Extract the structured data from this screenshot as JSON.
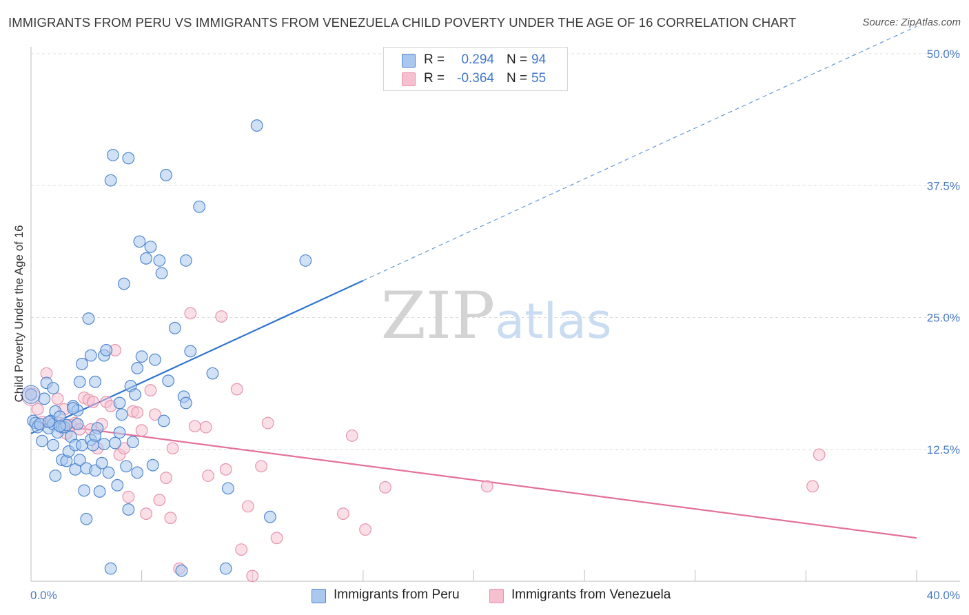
{
  "title": "IMMIGRANTS FROM PERU VS IMMIGRANTS FROM VENEZUELA CHILD POVERTY UNDER THE AGE OF 16 CORRELATION CHART",
  "source": "Source: ZipAtlas.com",
  "watermark": "ZIPatlas",
  "colors": {
    "peru_fill": "#aac8ee",
    "peru_stroke": "#4f86cf",
    "peru_line": "#2e74d1",
    "ven_fill": "#f7c0d0",
    "ven_stroke": "#e593ad",
    "ven_line": "#e4709a",
    "axis_text": "#4a7cc7",
    "grid": "#dcdcdc"
  },
  "legend_top": {
    "rows": [
      {
        "series": "peru",
        "r_label": "R =",
        "r_value": "0.294",
        "n_label": "N =",
        "n_value": "94"
      },
      {
        "series": "venezuela",
        "r_label": "R =",
        "r_value": "-0.364",
        "n_label": "N =",
        "n_value": "55"
      }
    ]
  },
  "legend_bottom": [
    {
      "series": "peru",
      "label": "Immigrants from Peru"
    },
    {
      "series": "venezuela",
      "label": "Immigrants from Venezuela"
    }
  ],
  "chart_data": {
    "type": "scatter",
    "title": "IMMIGRANTS FROM PERU VS IMMIGRANTS FROM VENEZUELA CHILD POVERTY UNDER THE AGE OF 16 CORRELATION CHART",
    "xlabel": "",
    "ylabel": "Child Poverty Under the Age of 16",
    "xlim": [
      0,
      40
    ],
    "ylim": [
      0,
      50
    ],
    "x_tick_labels": [
      "0.0%",
      "40.0%"
    ],
    "y_ticks": [
      12.5,
      25.0,
      37.5,
      50.0
    ],
    "y_tick_labels": [
      "12.5%",
      "25.0%",
      "37.5%",
      "50.0%"
    ],
    "grid": true,
    "series": [
      {
        "name": "Immigrants from Peru",
        "key": "peru",
        "trend": {
          "x0": 0,
          "y0": 14.0,
          "x1": 15.0,
          "y1": 28.5,
          "dash_to_x": 40,
          "dash_to_y": 52.6
        },
        "points": [
          [
            0.0,
            17.7
          ],
          [
            0.1,
            15.2
          ],
          [
            0.2,
            15.0
          ],
          [
            0.3,
            14.6
          ],
          [
            0.4,
            14.9
          ],
          [
            0.5,
            13.3
          ],
          [
            0.6,
            17.3
          ],
          [
            0.7,
            18.8
          ],
          [
            0.8,
            14.5
          ],
          [
            0.9,
            15.2
          ],
          [
            1.0,
            12.9
          ],
          [
            1.0,
            18.3
          ],
          [
            1.1,
            16.1
          ],
          [
            1.0,
            14.9
          ],
          [
            1.1,
            10.0
          ],
          [
            1.2,
            14.1
          ],
          [
            1.3,
            15.6
          ],
          [
            1.4,
            11.5
          ],
          [
            1.4,
            14.6
          ],
          [
            1.5,
            14.6
          ],
          [
            1.6,
            11.4
          ],
          [
            1.6,
            14.8
          ],
          [
            1.7,
            12.3
          ],
          [
            1.8,
            13.7
          ],
          [
            1.9,
            16.6
          ],
          [
            2.0,
            10.6
          ],
          [
            2.0,
            12.9
          ],
          [
            2.1,
            16.2
          ],
          [
            2.2,
            18.9
          ],
          [
            2.2,
            11.5
          ],
          [
            2.3,
            12.9
          ],
          [
            2.3,
            20.6
          ],
          [
            2.4,
            8.6
          ],
          [
            2.5,
            10.7
          ],
          [
            2.5,
            5.9
          ],
          [
            2.6,
            24.9
          ],
          [
            2.7,
            13.4
          ],
          [
            2.7,
            21.4
          ],
          [
            2.8,
            12.9
          ],
          [
            2.9,
            10.5
          ],
          [
            2.9,
            18.9
          ],
          [
            3.0,
            14.5
          ],
          [
            3.1,
            8.5
          ],
          [
            3.2,
            11.2
          ],
          [
            3.3,
            21.4
          ],
          [
            3.3,
            13.0
          ],
          [
            3.4,
            21.9
          ],
          [
            3.5,
            10.3
          ],
          [
            3.6,
            1.2
          ],
          [
            3.7,
            40.4
          ],
          [
            3.8,
            13.1
          ],
          [
            3.9,
            9.1
          ],
          [
            4.0,
            16.9
          ],
          [
            4.0,
            14.1
          ],
          [
            4.1,
            15.8
          ],
          [
            4.2,
            28.2
          ],
          [
            4.3,
            10.9
          ],
          [
            4.4,
            40.1
          ],
          [
            4.4,
            6.8
          ],
          [
            4.5,
            18.5
          ],
          [
            4.6,
            13.2
          ],
          [
            4.7,
            17.7
          ],
          [
            4.8,
            20.2
          ],
          [
            4.8,
            10.3
          ],
          [
            4.9,
            32.2
          ],
          [
            5.0,
            21.3
          ],
          [
            5.2,
            30.6
          ],
          [
            5.4,
            31.7
          ],
          [
            5.5,
            11.0
          ],
          [
            5.6,
            21.0
          ],
          [
            5.8,
            30.4
          ],
          [
            5.9,
            29.2
          ],
          [
            6.0,
            15.2
          ],
          [
            6.2,
            19.0
          ],
          [
            6.5,
            24.0
          ],
          [
            6.8,
            1.0
          ],
          [
            6.9,
            17.5
          ],
          [
            7.0,
            30.4
          ],
          [
            7.0,
            16.9
          ],
          [
            7.2,
            21.8
          ],
          [
            7.6,
            35.5
          ],
          [
            8.2,
            19.7
          ],
          [
            8.8,
            1.2
          ],
          [
            8.9,
            8.8
          ],
          [
            10.2,
            43.2
          ],
          [
            10.8,
            6.1
          ],
          [
            12.4,
            30.4
          ],
          [
            3.6,
            38.0
          ],
          [
            2.1,
            14.9
          ],
          [
            1.3,
            14.7
          ],
          [
            0.8,
            15.1
          ],
          [
            6.1,
            38.5
          ],
          [
            1.9,
            16.4
          ],
          [
            2.9,
            13.8
          ]
        ]
      },
      {
        "name": "Immigrants from Venezuela",
        "key": "venezuela",
        "trend": {
          "x0": 0,
          "y0": 15.1,
          "x1": 40,
          "y1": 4.1
        },
        "points": [
          [
            0.0,
            17.7
          ],
          [
            0.3,
            16.3
          ],
          [
            0.5,
            15.1
          ],
          [
            0.7,
            19.7
          ],
          [
            0.9,
            15.2
          ],
          [
            1.2,
            17.3
          ],
          [
            1.3,
            15.0
          ],
          [
            1.5,
            16.3
          ],
          [
            1.6,
            14.0
          ],
          [
            1.8,
            14.8
          ],
          [
            2.0,
            15.0
          ],
          [
            2.2,
            14.4
          ],
          [
            2.4,
            17.4
          ],
          [
            2.6,
            17.2
          ],
          [
            2.8,
            17.0
          ],
          [
            3.0,
            12.6
          ],
          [
            3.2,
            14.9
          ],
          [
            3.4,
            17.0
          ],
          [
            3.6,
            16.6
          ],
          [
            3.8,
            21.9
          ],
          [
            4.0,
            12.0
          ],
          [
            4.2,
            12.6
          ],
          [
            4.4,
            8.0
          ],
          [
            4.6,
            16.1
          ],
          [
            4.8,
            16.0
          ],
          [
            5.0,
            14.3
          ],
          [
            5.2,
            6.4
          ],
          [
            5.4,
            18.1
          ],
          [
            5.6,
            15.8
          ],
          [
            5.8,
            7.7
          ],
          [
            6.1,
            9.8
          ],
          [
            6.3,
            6.0
          ],
          [
            6.4,
            12.6
          ],
          [
            6.7,
            1.2
          ],
          [
            7.2,
            25.4
          ],
          [
            7.4,
            14.7
          ],
          [
            7.9,
            14.6
          ],
          [
            8.0,
            10.0
          ],
          [
            8.6,
            25.1
          ],
          [
            8.8,
            10.6
          ],
          [
            9.3,
            18.2
          ],
          [
            9.5,
            3.0
          ],
          [
            9.8,
            7.1
          ],
          [
            10.0,
            0.5
          ],
          [
            10.4,
            10.9
          ],
          [
            10.7,
            15.0
          ],
          [
            11.1,
            4.1
          ],
          [
            14.1,
            6.4
          ],
          [
            14.5,
            13.8
          ],
          [
            15.1,
            4.9
          ],
          [
            16.0,
            8.9
          ],
          [
            20.6,
            9.0
          ],
          [
            35.3,
            9.0
          ],
          [
            35.6,
            12.0
          ],
          [
            2.7,
            14.4
          ]
        ]
      }
    ]
  }
}
